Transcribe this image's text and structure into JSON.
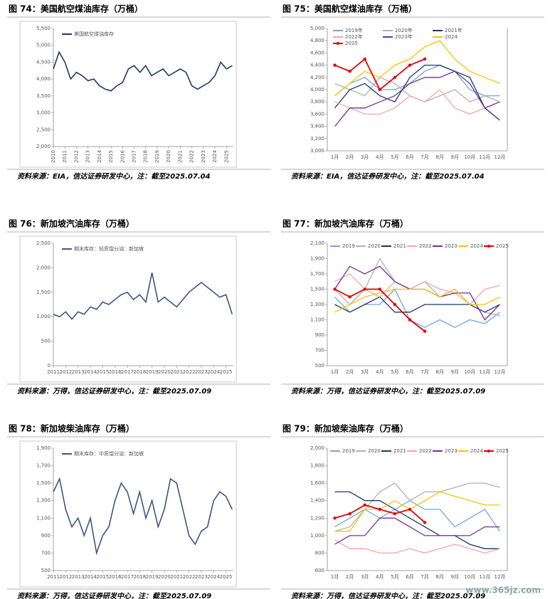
{
  "chart_data": [
    {
      "type": "line",
      "title": "图 74：美国航空煤油库存（万桶）",
      "source": "资料来源：EIA，信达证券研发中心，注：截至2025.07.04",
      "x": [
        2010,
        2010.5,
        2011,
        2011.5,
        2012,
        2012.5,
        2013,
        2013.5,
        2014,
        2014.5,
        2015,
        2015.5,
        2016,
        2016.5,
        2017,
        2017.5,
        2018,
        2018.5,
        2019,
        2019.5,
        2020,
        2020.5,
        2021,
        2021.5,
        2022,
        2022.5,
        2023,
        2023.5,
        2024,
        2024.5,
        2025,
        2025.5
      ],
      "series": [
        {
          "name": "美国航空煤油库存",
          "color": "#1f3864",
          "values": [
            4300,
            4800,
            4500,
            4000,
            4200,
            4100,
            3950,
            4000,
            3800,
            3700,
            3650,
            3800,
            3900,
            4300,
            4400,
            4200,
            4400,
            4100,
            4200,
            4300,
            4100,
            4200,
            4300,
            4200,
            3800,
            3700,
            3800,
            3900,
            4100,
            4500,
            4300,
            4400
          ]
        }
      ],
      "xlim": [
        2010,
        2025.6
      ],
      "xticks": [
        2010,
        2011,
        2012,
        2013,
        2014,
        2015,
        2016,
        2017,
        2018,
        2019,
        2020,
        2021,
        2022,
        2023,
        2024,
        2025
      ],
      "ylim": [
        2000,
        5500
      ],
      "yticks": [
        {
          "value": 2000,
          "label": "2,000"
        },
        {
          "value": 2500,
          "label": "2,500"
        },
        {
          "value": 3000,
          "label": "3,000"
        },
        {
          "value": 3500,
          "label": "3,500"
        },
        {
          "value": 4000,
          "label": "4,000"
        },
        {
          "value": 4500,
          "label": "4,500"
        },
        {
          "value": 5000,
          "label": "5,000"
        },
        {
          "value": 5500,
          "label": "5,500"
        }
      ]
    },
    {
      "type": "line",
      "title": "图 75：美国航空煤油库存（万桶）",
      "source": "资料来源：EIA，信达证券研发中心，注：截至2025.07.04",
      "categories": [
        "1月",
        "2月",
        "3月",
        "4月",
        "5月",
        "6月",
        "7月",
        "8月",
        "9月",
        "10月",
        "11月",
        "12月"
      ],
      "series": [
        {
          "name": "2019年",
          "color": "#6fa8dc",
          "values": [
            3900,
            4100,
            4200,
            4000,
            4000,
            4100,
            4300,
            4400,
            4300,
            4000,
            3900,
            3900
          ]
        },
        {
          "name": "2020年",
          "color": "#b0b0b0",
          "values": [
            4100,
            4000,
            3900,
            4200,
            4100,
            3900,
            3800,
            3900,
            4000,
            3800,
            3900,
            3800
          ]
        },
        {
          "name": "2021年",
          "color": "#1f3864",
          "values": [
            3700,
            4000,
            4100,
            3900,
            3800,
            4200,
            4400,
            4400,
            4300,
            4200,
            3700,
            3500
          ]
        },
        {
          "name": "2022年",
          "color": "#f4a6a6",
          "values": [
            3800,
            3700,
            3600,
            3600,
            3700,
            3900,
            3800,
            4000,
            3700,
            3600,
            3700,
            3800
          ]
        },
        {
          "name": "2023年",
          "color": "#7030a0",
          "values": [
            3400,
            3700,
            3700,
            3800,
            3900,
            4100,
            4200,
            4200,
            4300,
            4100,
            3700,
            3800
          ]
        },
        {
          "name": "2024",
          "color": "#ffc000",
          "values": [
            3900,
            4100,
            4300,
            4200,
            4400,
            4500,
            4700,
            4800,
            4500,
            4300,
            4200,
            4100
          ]
        },
        {
          "name": "2025",
          "color": "#e00000",
          "marker": "o",
          "values": [
            4400,
            4300,
            4500,
            4000,
            4200,
            4400,
            4500,
            null,
            null,
            null,
            null,
            null
          ]
        }
      ],
      "ylim": [
        3000,
        5000
      ],
      "yticks": [
        {
          "value": 3000,
          "label": "3,000"
        },
        {
          "value": 3200,
          "label": "3,200"
        },
        {
          "value": 3400,
          "label": "3,400"
        },
        {
          "value": 3600,
          "label": "3,600"
        },
        {
          "value": 3800,
          "label": "3,800"
        },
        {
          "value": 4000,
          "label": "4,000"
        },
        {
          "value": 4200,
          "label": "4,200"
        },
        {
          "value": 4400,
          "label": "4,400"
        },
        {
          "value": 4600,
          "label": "4,600"
        },
        {
          "value": 4800,
          "label": "4,800"
        },
        {
          "value": 5000,
          "label": "5,000"
        }
      ]
    },
    {
      "type": "line",
      "title": "图 76：新加坡汽油库存（万桶）",
      "source": "资料来源：万得，信达证券研发中心，注：截至2025.07.09",
      "x": [
        2011,
        2011.5,
        2012,
        2012.5,
        2013,
        2013.5,
        2014,
        2014.5,
        2015,
        2015.5,
        2016,
        2016.5,
        2017,
        2017.5,
        2018,
        2018.5,
        2019,
        2019.5,
        2020,
        2020.5,
        2021,
        2021.5,
        2022,
        2022.5,
        2023,
        2023.5,
        2024,
        2024.5,
        2025,
        2025.5
      ],
      "series": [
        {
          "name": "期末库存：轻质馏分油：新加坡",
          "color": "#3b5683",
          "values": [
            1050,
            1000,
            1100,
            950,
            1100,
            1050,
            1200,
            1150,
            1300,
            1250,
            1350,
            1450,
            1500,
            1350,
            1450,
            1300,
            1900,
            1300,
            1400,
            1300,
            1200,
            1350,
            1500,
            1600,
            1700,
            1600,
            1500,
            1400,
            1450,
            1050
          ]
        }
      ],
      "xlim": [
        2011,
        2025.6
      ],
      "xticks": [
        2011,
        2012,
        2013,
        2014,
        2015,
        2016,
        2017,
        2018,
        2019,
        2020,
        2021,
        2022,
        2023,
        2024,
        2025
      ],
      "ylim": [
        0,
        2500
      ],
      "yticks": [
        0,
        500,
        {
          "value": 1000,
          "label": "1,000"
        },
        {
          "value": 1500,
          "label": "1,500"
        },
        {
          "value": 2000,
          "label": "2,000"
        },
        {
          "value": 2500,
          "label": "2,500"
        }
      ]
    },
    {
      "type": "line",
      "title": "图 77：新加坡汽油库存（万桶）",
      "source": "资料来源：万得，信达证券研发中心，注：截至2025.07.09",
      "categories": [
        "1月",
        "2月",
        "3月",
        "4月",
        "5月",
        "6月",
        "7月",
        "8月",
        "9月",
        "10月",
        "11月",
        "12月"
      ],
      "series": [
        {
          "name": "2019",
          "color": "#6fa8dc",
          "values": [
            1400,
            1200,
            1300,
            1300,
            1500,
            1100,
            1000,
            1100,
            1000,
            1100,
            1050,
            1200
          ]
        },
        {
          "name": "2020",
          "color": "#b0b0b0",
          "values": [
            1500,
            1300,
            1500,
            1900,
            1600,
            1500,
            1600,
            1400,
            1500,
            1300,
            1200,
            1150
          ]
        },
        {
          "name": "2021",
          "color": "#1f3864",
          "values": [
            1300,
            1200,
            1300,
            1400,
            1200,
            1200,
            1300,
            1300,
            1300,
            1300,
            1200,
            1300
          ]
        },
        {
          "name": "2022",
          "color": "#f4a6a6",
          "values": [
            1600,
            1700,
            1500,
            1400,
            1600,
            1500,
            1600,
            1500,
            1450,
            1300,
            1500,
            1550
          ]
        },
        {
          "name": "2023",
          "color": "#7030a0",
          "values": [
            1500,
            1800,
            1700,
            1800,
            1600,
            1500,
            1500,
            1400,
            1450,
            1450,
            1100,
            1300
          ]
        },
        {
          "name": "2024",
          "color": "#ffc000",
          "values": [
            1200,
            1300,
            1400,
            1450,
            1500,
            1500,
            1500,
            1400,
            1500,
            1300,
            1300,
            1400
          ]
        },
        {
          "name": "2025",
          "color": "#e00000",
          "marker": "o",
          "values": [
            1500,
            1400,
            1500,
            1500,
            1300,
            1100,
            950,
            null,
            null,
            null,
            null,
            null
          ]
        }
      ],
      "ylim": [
        500,
        2100
      ],
      "yticks": [
        500,
        700,
        900,
        {
          "value": 1100,
          "label": "1,100"
        },
        {
          "value": 1300,
          "label": "1,300"
        },
        {
          "value": 1500,
          "label": "1,500"
        },
        {
          "value": 1700,
          "label": "1,700"
        },
        {
          "value": 1900,
          "label": "1,900"
        },
        {
          "value": 2100,
          "label": "2,100"
        }
      ]
    },
    {
      "type": "line",
      "title": "图 78：新加坡柴油库存（万桶）",
      "source": "资料来源：万得，信达证券研发中心，注：截至2025.07.09",
      "x": [
        2011,
        2011.5,
        2012,
        2012.5,
        2013,
        2013.5,
        2014,
        2014.5,
        2015,
        2015.5,
        2016,
        2016.5,
        2017,
        2017.5,
        2018,
        2018.5,
        2019,
        2019.5,
        2020,
        2020.5,
        2021,
        2021.5,
        2022,
        2022.5,
        2023,
        2023.5,
        2024,
        2024.5,
        2025,
        2025.5
      ],
      "series": [
        {
          "name": "期末库存：中质馏分油：新加坡",
          "color": "#3b5683",
          "values": [
            1400,
            1550,
            1200,
            1000,
            1100,
            900,
            1100,
            700,
            900,
            1000,
            1300,
            1500,
            1400,
            1150,
            1400,
            1100,
            1300,
            1000,
            1200,
            1550,
            1500,
            1200,
            900,
            800,
            950,
            1000,
            1300,
            1400,
            1350,
            1200
          ]
        }
      ],
      "xlim": [
        2011,
        2025.6
      ],
      "xticks": [
        2011,
        2012,
        2013,
        2014,
        2015,
        2016,
        2017,
        2018,
        2019,
        2020,
        2021,
        2022,
        2023,
        2024,
        2025
      ],
      "ylim": [
        500,
        1900
      ],
      "yticks": [
        500,
        700,
        900,
        {
          "value": 1100,
          "label": "1,100"
        },
        {
          "value": 1300,
          "label": "1,300"
        },
        {
          "value": 1500,
          "label": "1,500"
        },
        {
          "value": 1700,
          "label": "1,700"
        },
        {
          "value": 1900,
          "label": "1,900"
        }
      ]
    },
    {
      "type": "line",
      "title": "图 79：新加坡柴油库存（万桶）",
      "source": "资料来源：万得，信达证券研发中心，注：截至2025.07.09",
      "categories": [
        "1月",
        "2月",
        "3月",
        "4月",
        "5月",
        "6月",
        "7月",
        "8月",
        "9月",
        "10月",
        "11月",
        "12月"
      ],
      "series": [
        {
          "name": "2019",
          "color": "#6fa8dc",
          "values": [
            1100,
            1200,
            1300,
            1200,
            1300,
            1400,
            1300,
            1300,
            1100,
            1200,
            1300,
            1050
          ]
        },
        {
          "name": "2020",
          "color": "#b0b0b0",
          "values": [
            1050,
            1100,
            1300,
            1500,
            1600,
            1400,
            1500,
            1500,
            1550,
            1600,
            1600,
            1550
          ]
        },
        {
          "name": "2021",
          "color": "#1f3864",
          "values": [
            1500,
            1500,
            1400,
            1400,
            1300,
            1200,
            1100,
            1000,
            1000,
            900,
            850,
            850
          ]
        },
        {
          "name": "2022",
          "color": "#f4a6a6",
          "values": [
            950,
            850,
            850,
            800,
            800,
            850,
            800,
            850,
            900,
            850,
            800,
            850
          ]
        },
        {
          "name": "2023",
          "color": "#7030a0",
          "values": [
            900,
            1000,
            1000,
            1200,
            1200,
            1100,
            1000,
            1000,
            1000,
            1000,
            1100,
            1100
          ]
        },
        {
          "name": "2024",
          "color": "#ffc000",
          "values": [
            1050,
            1050,
            1300,
            1300,
            1400,
            1300,
            1400,
            1500,
            1450,
            1400,
            1350,
            1350
          ]
        },
        {
          "name": "2025",
          "color": "#e00000",
          "marker": "o",
          "values": [
            1200,
            1250,
            1350,
            1300,
            1250,
            1300,
            1150,
            null,
            null,
            null,
            null,
            null
          ]
        }
      ],
      "ylim": [
        600,
        2000
      ],
      "yticks": [
        600,
        800,
        {
          "value": 1000,
          "label": "1,000"
        },
        {
          "value": 1200,
          "label": "1,200"
        },
        {
          "value": 1400,
          "label": "1,400"
        },
        {
          "value": 1600,
          "label": "1,600"
        },
        {
          "value": 1800,
          "label": "1,800"
        },
        {
          "value": 2000,
          "label": "2,000"
        }
      ]
    }
  ],
  "watermark": "www.365jz.com"
}
